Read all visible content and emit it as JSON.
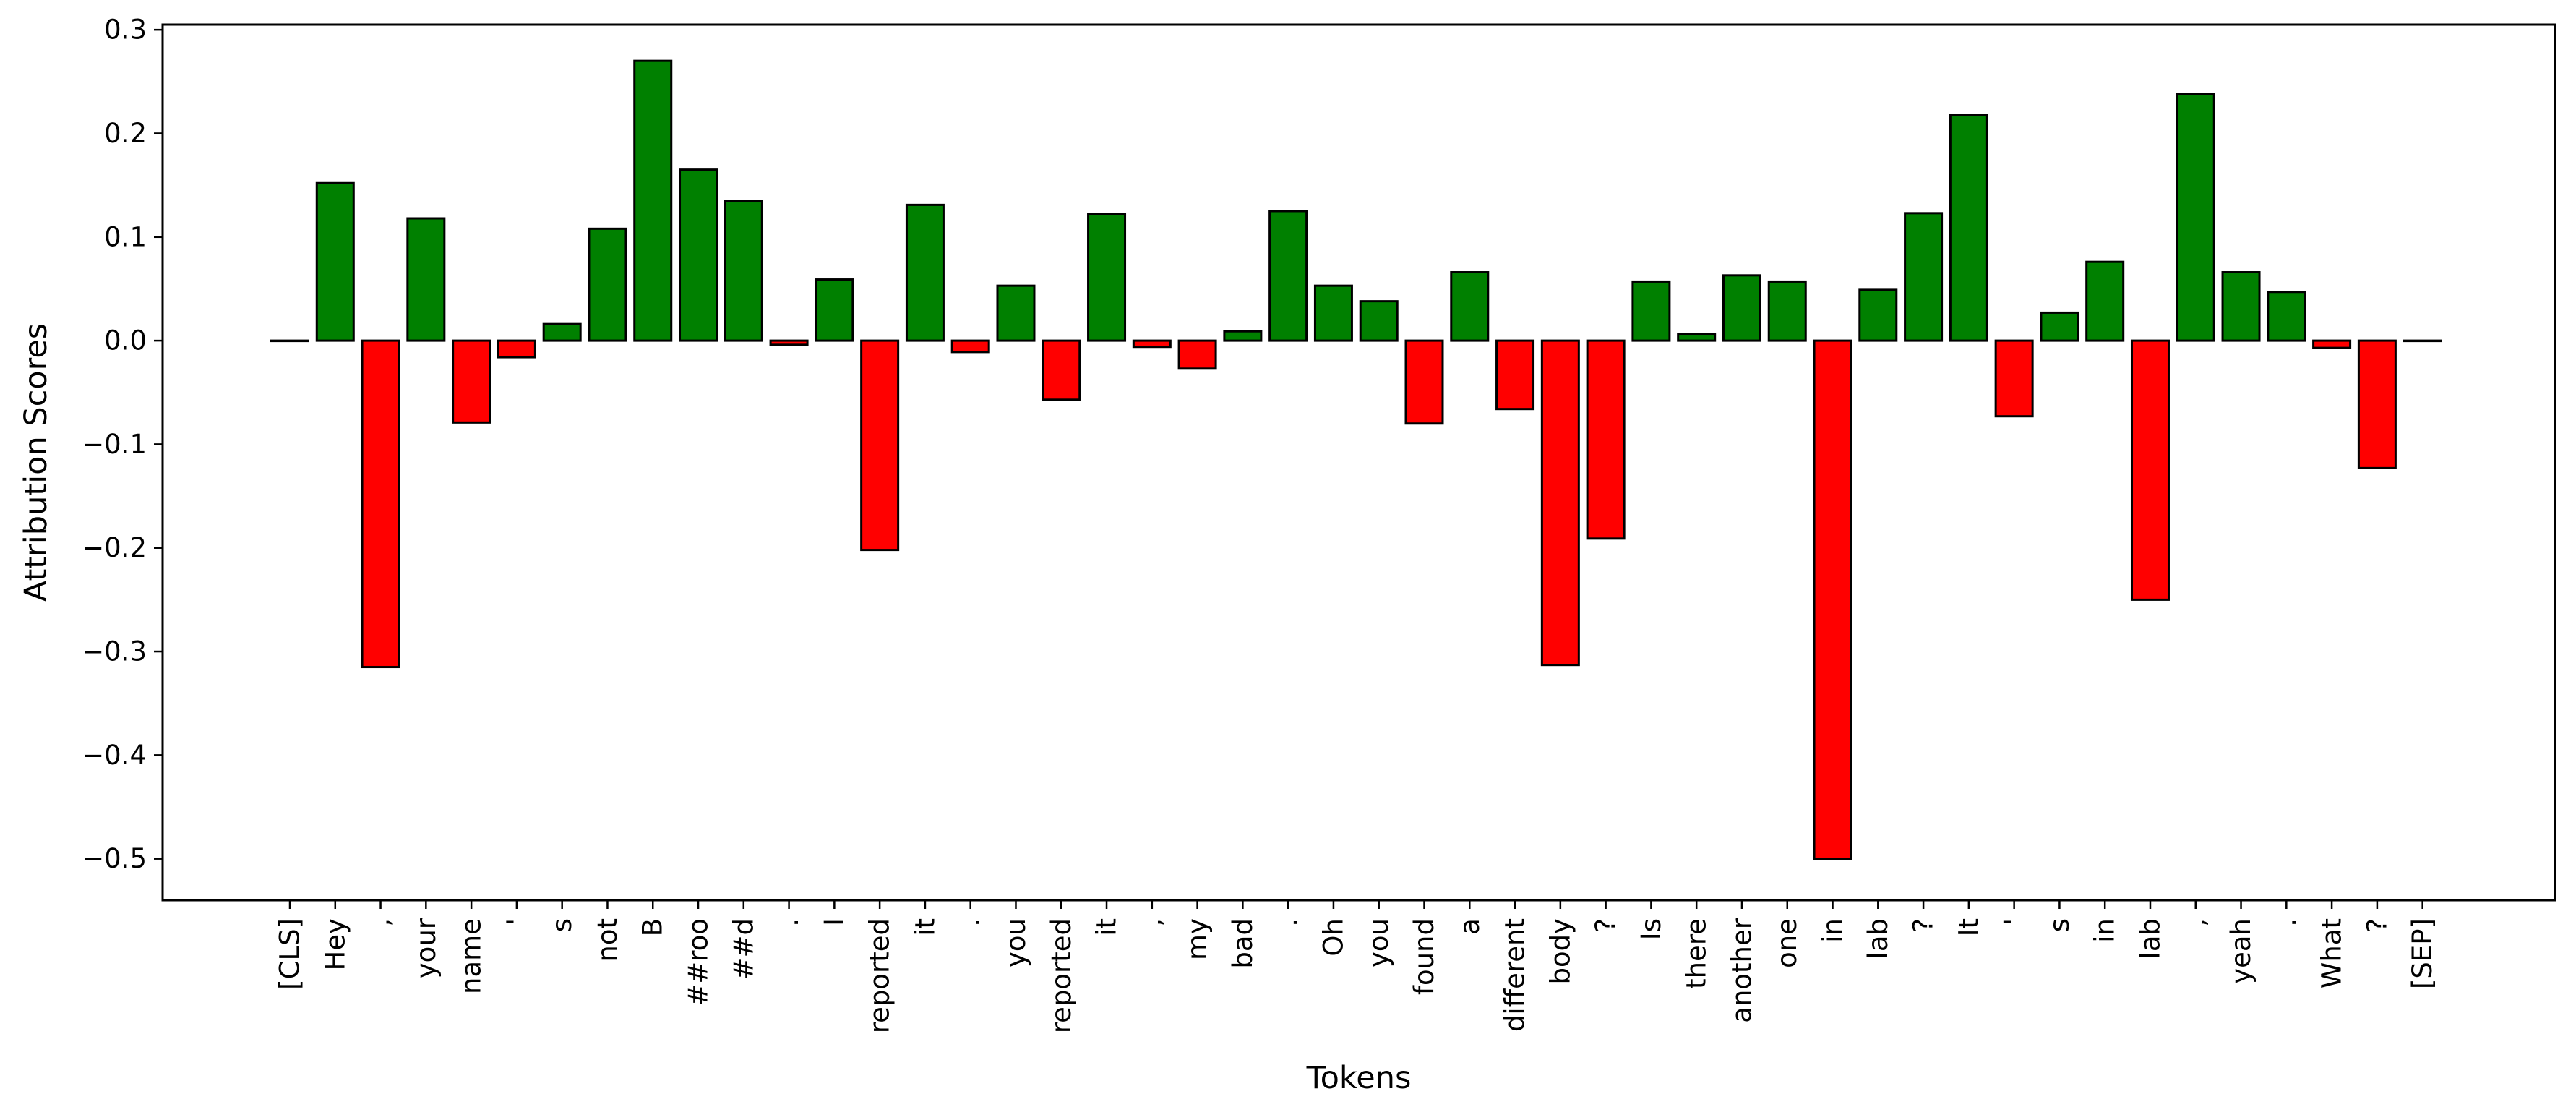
{
  "chart_data": {
    "type": "bar",
    "title": "",
    "xlabel": "Tokens",
    "ylabel": "Attribution Scores",
    "ylim": [
      -0.54,
      0.305
    ],
    "yticks": [
      0.3,
      0.2,
      0.1,
      0.0,
      -0.1,
      -0.2,
      -0.3,
      -0.4,
      -0.5
    ],
    "ytick_labels": [
      "0.3",
      "0.2",
      "0.1",
      "0.0",
      "−0.1",
      "−0.2",
      "−0.3",
      "−0.4",
      "−0.5"
    ],
    "positive_color": "#008000",
    "negative_color": "#ff0000",
    "edge_color": "#000000",
    "grid": false,
    "legend": "none",
    "categories": [
      "[CLS]",
      "Hey",
      ",",
      "your",
      "name",
      "'",
      "s",
      "not",
      "B",
      "##roo",
      "##d",
      ".",
      "I",
      "reported",
      "it",
      ".",
      "you",
      "reported",
      "it",
      ",",
      "my",
      "bad",
      ".",
      "Oh",
      "you",
      "found",
      "a",
      "different",
      "body",
      "?",
      "Is",
      "there",
      "another",
      "one",
      "in",
      "lab",
      "?",
      "It",
      "'",
      "s",
      "in",
      "lab",
      ",",
      "yeah",
      ".",
      "What",
      "?",
      "[SEP]"
    ],
    "values": [
      0.0,
      0.152,
      -0.315,
      0.118,
      -0.079,
      -0.016,
      0.016,
      0.108,
      0.27,
      0.165,
      0.135,
      -0.004,
      0.059,
      -0.202,
      0.131,
      -0.011,
      0.053,
      -0.057,
      0.122,
      -0.006,
      -0.027,
      0.009,
      0.125,
      0.053,
      0.038,
      -0.08,
      0.066,
      -0.066,
      -0.313,
      -0.191,
      0.057,
      0.006,
      0.063,
      0.057,
      -0.5,
      0.049,
      0.123,
      0.218,
      -0.073,
      0.027,
      0.076,
      -0.25,
      0.238,
      0.066,
      0.047,
      -0.007,
      -0.123,
      0.0
    ]
  }
}
